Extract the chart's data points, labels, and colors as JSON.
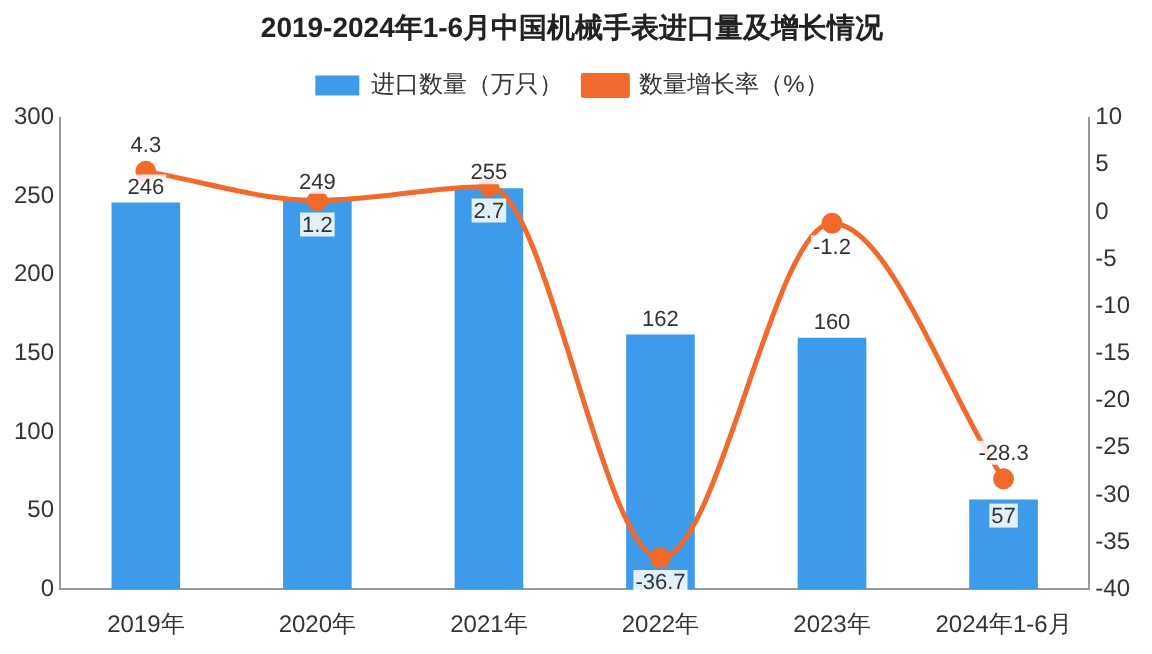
{
  "chart_data": {
    "type": "bar",
    "title": "2019-2024年1-6月中国机械手表进口量及增长情况",
    "categories": [
      "2019年",
      "2020年",
      "2021年",
      "2022年",
      "2023年",
      "2024年1-6月"
    ],
    "series": [
      {
        "name": "进口数量（万只）",
        "color": "#3e9aea",
        "values": [
          246,
          249,
          255,
          162,
          160,
          57
        ]
      },
      {
        "name": "数量增长率（%）",
        "type": "line",
        "axis": "y2",
        "color": "#f26a2b",
        "values": [
          4.3,
          1.2,
          2.7,
          -36.7,
          -1.2,
          -28.3
        ]
      }
    ],
    "ylim": [
      0,
      300
    ],
    "yticks": [
      0,
      50,
      100,
      150,
      200,
      250,
      300
    ],
    "y2lim": [
      -40,
      10
    ],
    "y2ticks": [
      -40,
      -35,
      -30,
      -25,
      -20,
      -15,
      -10,
      -5,
      0,
      5,
      10
    ],
    "data_labels": true,
    "legend": "top",
    "grid": false,
    "marker": "circle"
  }
}
